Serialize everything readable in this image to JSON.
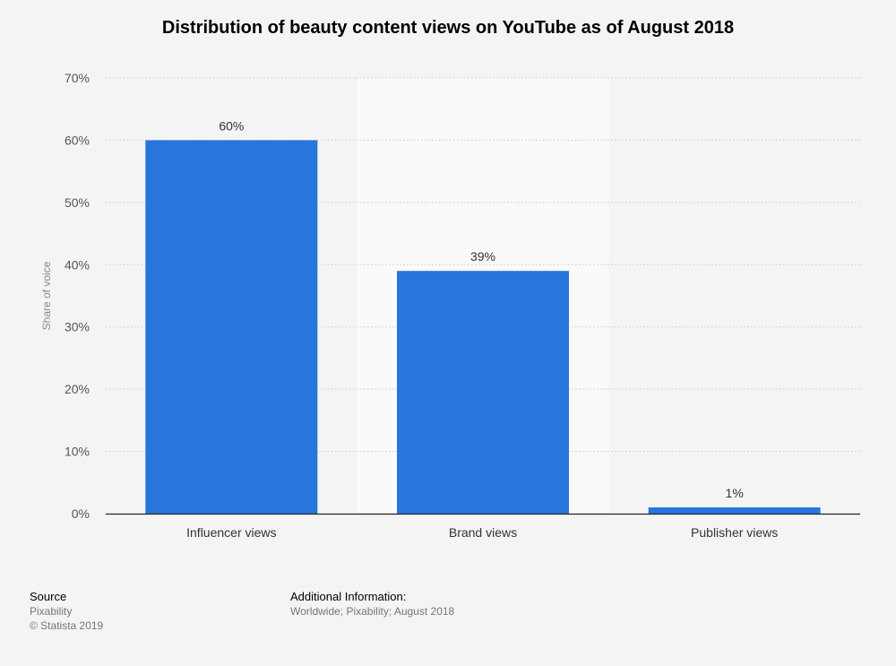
{
  "chart_data": {
    "type": "bar",
    "title": "Distribution of beauty content views on YouTube as of August 2018",
    "categories": [
      "Influencer views",
      "Brand views",
      "Publisher views"
    ],
    "values": [
      60,
      39,
      1
    ],
    "data_labels": [
      "60%",
      "39%",
      "1%"
    ],
    "ylabel": "Share of voice",
    "ylim": [
      0,
      70
    ],
    "yticks": [
      0,
      10,
      20,
      30,
      40,
      50,
      60,
      70
    ],
    "ytick_labels": [
      "0%",
      "10%",
      "20%",
      "30%",
      "40%",
      "50%",
      "60%",
      "70%"
    ],
    "grid": true,
    "bar_color": "#2876dd",
    "highlight_band_color": "#fafafa"
  },
  "footer": {
    "source_heading": "Source",
    "source_name": "Pixability",
    "copyright": "© Statista 2019",
    "additional_heading": "Additional Information:",
    "additional_text": "Worldwide; Pixability; August 2018"
  }
}
